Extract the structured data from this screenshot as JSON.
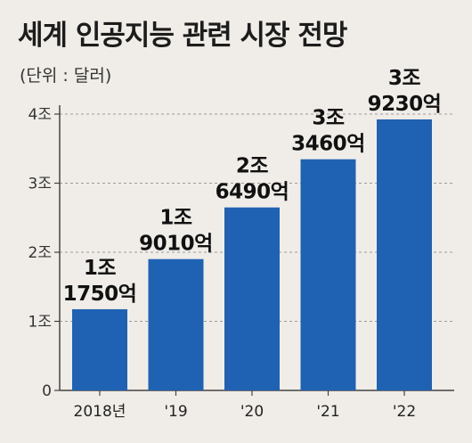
{
  "title": "세계 인공지능 관련 시장 전망",
  "subtitle": "(단위 : 달러)",
  "colors": {
    "bar": "#1f62b3",
    "background": "#f0ede8",
    "axis": "#444444",
    "grid": "#9a9a9a"
  },
  "chart_data": {
    "type": "bar",
    "title": "세계 인공지능 관련 시장 전망",
    "unit": "(단위 : 달러)",
    "categories": [
      "2018년",
      "'19",
      "'20",
      "'21",
      "'22"
    ],
    "values": [
      1.175,
      1.901,
      2.649,
      3.346,
      3.923
    ],
    "data_labels": [
      [
        "1조",
        "1750억"
      ],
      [
        "1조",
        "9010억"
      ],
      [
        "2조",
        "6490억"
      ],
      [
        "3조",
        "3460억"
      ],
      [
        "3조",
        "9230억"
      ]
    ],
    "yticks": [
      0,
      1,
      2,
      3,
      4
    ],
    "ytick_labels": [
      "0",
      "1조",
      "2조",
      "3조",
      "4조"
    ],
    "ylim": [
      0,
      4
    ],
    "grid": true,
    "legend": "none"
  }
}
